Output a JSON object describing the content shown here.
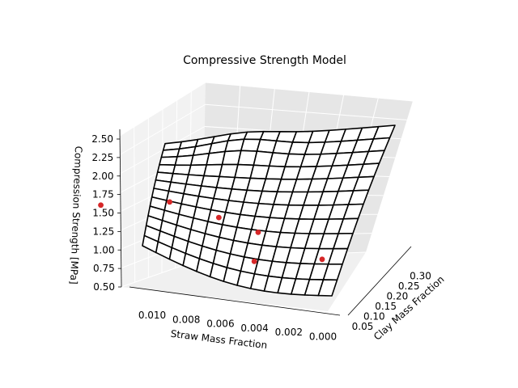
{
  "chart_data": {
    "type": "surface3d",
    "title": "Compressive Strength Model",
    "xlabel": "Straw Mass Fraction",
    "ylabel": "Clay Mass Fraction",
    "zlabel": "Compression Strength [MPa]",
    "x_ticks": [
      "0.010",
      "0.008",
      "0.006",
      "0.004",
      "0.002",
      "0.000"
    ],
    "y_ticks": [
      "0.05",
      "0.10",
      "0.15",
      "0.20",
      "0.25",
      "0.30"
    ],
    "z_ticks": [
      "0.50",
      "0.75",
      "1.00",
      "1.25",
      "1.50",
      "1.75",
      "2.00",
      "2.25",
      "2.50"
    ],
    "grid": true,
    "surface": {
      "color": "#000000",
      "style": "wireframe",
      "face": "#ffffff"
    },
    "points": {
      "color": "#d62728",
      "data": [
        {
          "x": 0.0115,
          "y": 0.1,
          "z": 1.6
        },
        {
          "x": 0.008,
          "y": 0.1,
          "z": 1.8
        },
        {
          "x": 0.0055,
          "y": 0.1,
          "z": 1.55
        },
        {
          "x": 0.0035,
          "y": 0.1,
          "z": 1.3
        },
        {
          "x": 0.0035,
          "y": 0.06,
          "z": 0.75
        },
        {
          "x": 0.0,
          "y": 0.05,
          "z": 0.95
        }
      ]
    }
  }
}
